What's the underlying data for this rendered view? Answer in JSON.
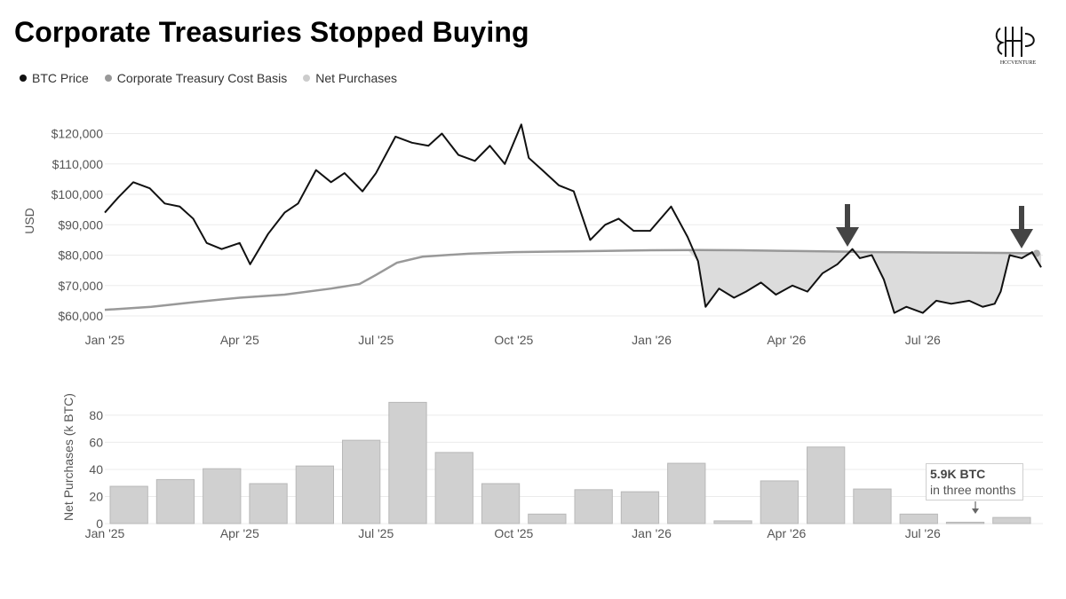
{
  "title": "Corporate Treasuries Stopped Buying",
  "logo_text": "HCCVENTURE",
  "legend": [
    {
      "label": "BTC Price",
      "color": "#111111"
    },
    {
      "label": "Corporate Treasury Cost Basis",
      "color": "#999999"
    },
    {
      "label": "Net Purchases",
      "color": "#cccccc"
    }
  ],
  "annotation": {
    "line1": "5.9K BTC",
    "line2": "in three months"
  },
  "chart_data": [
    {
      "type": "line",
      "ylabel": "USD",
      "yticks": [
        "$60,000",
        "$70,000",
        "$80,000",
        "$90,000",
        "$100,000",
        "$110,000",
        "$120,000"
      ],
      "ytick_values": [
        60000,
        70000,
        80000,
        90000,
        100000,
        110000,
        120000
      ],
      "ylim": [
        56500,
        126000
      ],
      "xticks": [
        "Jan '25",
        "Apr '25",
        "Jul '25",
        "Oct '25",
        "Jan '26",
        "Apr '26",
        "Jul '26"
      ],
      "grid": true,
      "series": [
        {
          "name": "BTC Price",
          "color": "#111111",
          "x": [
            "2025-01-01",
            "2025-01-10",
            "2025-01-20",
            "2025-01-31",
            "2025-02-10",
            "2025-02-20",
            "2025-03-01",
            "2025-03-10",
            "2025-03-20",
            "2025-04-01",
            "2025-04-08",
            "2025-04-20",
            "2025-05-01",
            "2025-05-10",
            "2025-05-22",
            "2025-06-01",
            "2025-06-10",
            "2025-06-22",
            "2025-07-01",
            "2025-07-14",
            "2025-07-25",
            "2025-08-05",
            "2025-08-14",
            "2025-08-25",
            "2025-09-05",
            "2025-09-15",
            "2025-09-25",
            "2025-10-06",
            "2025-10-11",
            "2025-10-20",
            "2025-10-31",
            "2025-11-10",
            "2025-11-21",
            "2025-12-01",
            "2025-12-10",
            "2025-12-20",
            "2025-12-31",
            "2026-01-14",
            "2026-01-25",
            "2026-02-01",
            "2026-02-06",
            "2026-02-15",
            "2026-02-25",
            "2026-03-05",
            "2026-03-15",
            "2026-03-25",
            "2026-04-05",
            "2026-04-15",
            "2026-04-25",
            "2026-05-05",
            "2026-05-15",
            "2026-05-20",
            "2026-05-28",
            "2026-06-05",
            "2026-06-12",
            "2026-06-20",
            "2026-07-01",
            "2026-07-10",
            "2026-07-20",
            "2026-08-01",
            "2026-08-10",
            "2026-08-18",
            "2026-08-22",
            "2026-08-28",
            "2026-09-05",
            "2026-09-12",
            "2026-09-18"
          ],
          "y": [
            94000,
            99000,
            104000,
            102000,
            97000,
            96000,
            92000,
            84000,
            82000,
            84000,
            77000,
            87000,
            94000,
            97000,
            108000,
            104000,
            107000,
            101000,
            107000,
            119000,
            117000,
            116000,
            120000,
            113000,
            111000,
            116000,
            110000,
            123000,
            112000,
            108000,
            103000,
            101000,
            85000,
            90000,
            92000,
            88000,
            88000,
            96000,
            86000,
            78000,
            63000,
            69000,
            66000,
            68000,
            71000,
            67000,
            70000,
            68000,
            74000,
            77000,
            82000,
            79000,
            80000,
            72000,
            61000,
            63000,
            61000,
            65000,
            64000,
            65000,
            63000,
            64000,
            68000,
            80000,
            79000,
            81000,
            76000
          ]
        },
        {
          "name": "Corporate Treasury Cost Basis",
          "color": "#999999",
          "x": [
            "2025-01-01",
            "2025-02-01",
            "2025-03-01",
            "2025-04-01",
            "2025-05-01",
            "2025-06-01",
            "2025-06-20",
            "2025-07-01",
            "2025-07-15",
            "2025-08-01",
            "2025-09-01",
            "2025-10-01",
            "2025-11-01",
            "2025-12-01",
            "2026-01-01",
            "2026-02-01",
            "2026-03-01",
            "2026-04-01",
            "2026-05-01",
            "2026-06-01",
            "2026-07-01",
            "2026-08-01",
            "2026-09-01",
            "2026-09-15"
          ],
          "y": [
            62000,
            63000,
            64500,
            66000,
            67000,
            69000,
            70500,
            73500,
            77500,
            79500,
            80500,
            81000,
            81200,
            81400,
            81600,
            81700,
            81600,
            81400,
            81200,
            81000,
            80900,
            80800,
            80700,
            80600
          ]
        }
      ]
    },
    {
      "type": "bar",
      "ylabel": "Net Purchases (k BTC)",
      "yticks": [
        "0",
        "20",
        "40",
        "60",
        "80"
      ],
      "ytick_values": [
        0,
        20,
        40,
        60,
        80
      ],
      "ylim": [
        0,
        95
      ],
      "xticks": [
        "Jan '25",
        "Apr '25",
        "Jul '25",
        "Oct '25",
        "Jan '26",
        "Apr '26",
        "Jul '26"
      ],
      "series": [
        {
          "name": "Net Purchases",
          "color": "#cccccc",
          "values": [
            27.5,
            32.5,
            40.5,
            29.5,
            42.5,
            61.5,
            89.5,
            52.5,
            29.5,
            7,
            25,
            23.5,
            44.5,
            2,
            31.5,
            56.5,
            25.5,
            7,
            1,
            4.5
          ]
        }
      ]
    }
  ]
}
